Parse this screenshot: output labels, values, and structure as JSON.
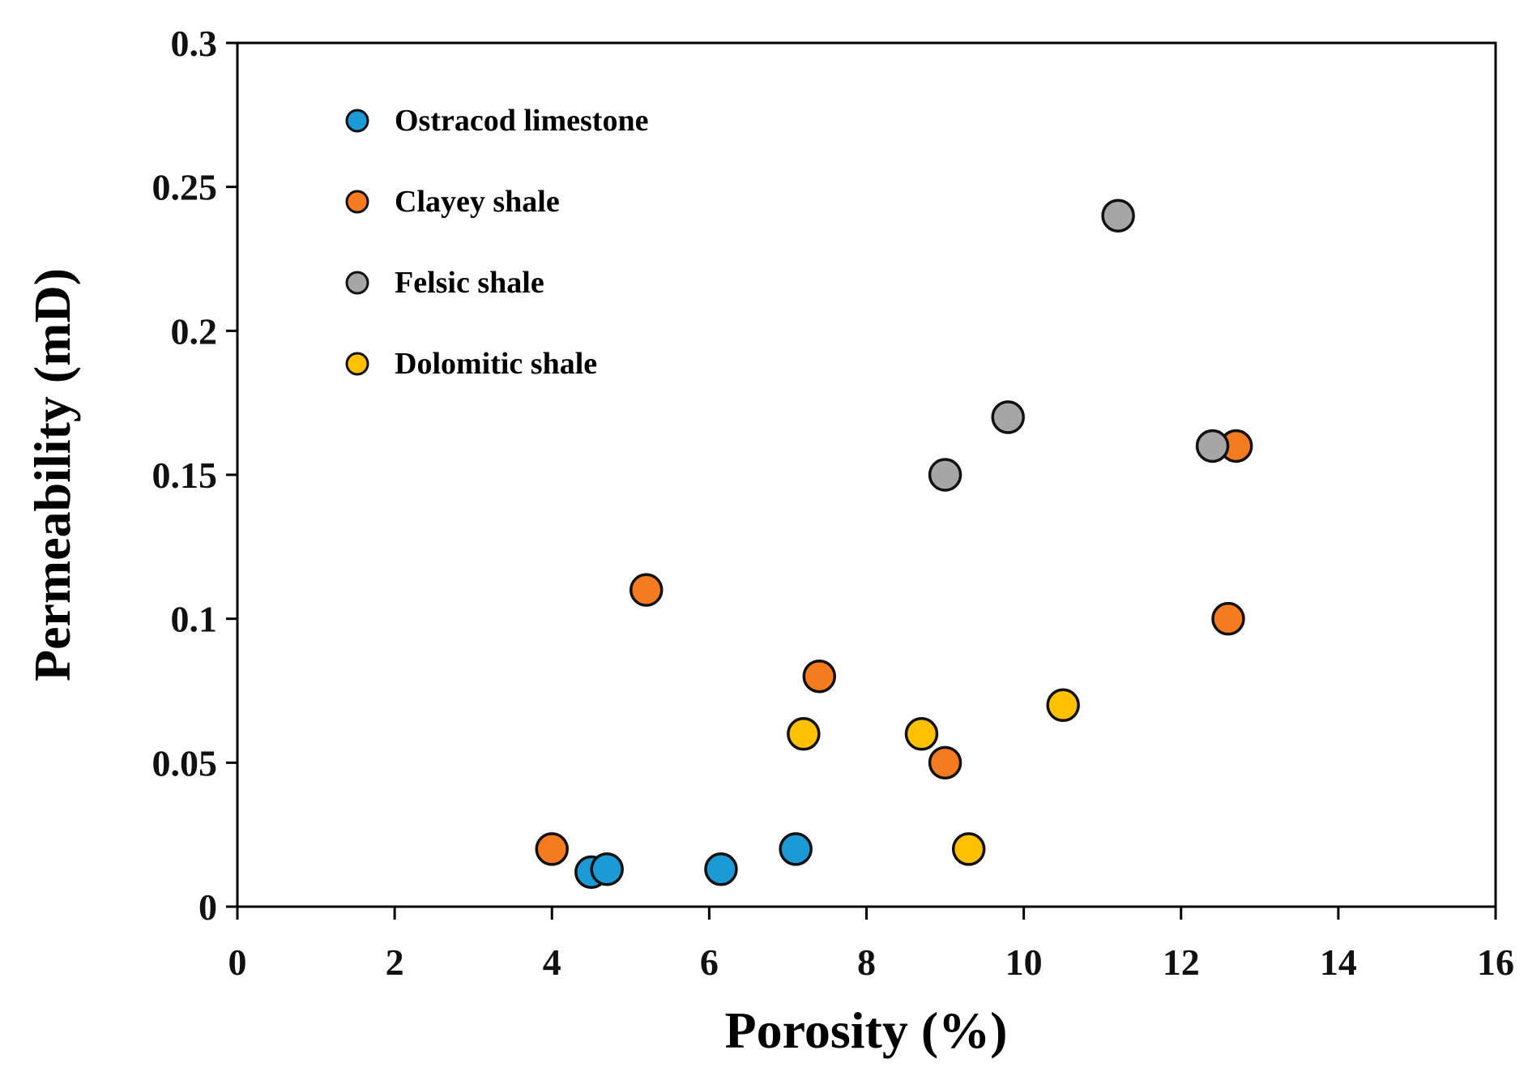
{
  "chart_data": {
    "type": "scatter",
    "title": "",
    "xlabel": "Porosity (%)",
    "ylabel": "Permeability (mD)",
    "xlim": [
      0,
      16
    ],
    "ylim": [
      0,
      0.3
    ],
    "xticks": [
      0,
      2,
      4,
      6,
      8,
      10,
      12,
      14,
      16
    ],
    "xtick_labels": [
      "0",
      "2",
      "4",
      "6",
      "8",
      "10",
      "12",
      "14",
      "16"
    ],
    "yticks": [
      0,
      0.05,
      0.1,
      0.15,
      0.2,
      0.25,
      0.3
    ],
    "ytick_labels": [
      "0",
      "0.05",
      "0.1",
      "0.15",
      "0.2",
      "0.25",
      "0.3"
    ],
    "grid": false,
    "legend_position": "top-left",
    "series": [
      {
        "name": "Ostracod limestone",
        "color": "#1b9ad6",
        "points": [
          {
            "x": 4.5,
            "y": 0.012
          },
          {
            "x": 4.7,
            "y": 0.013
          },
          {
            "x": 6.15,
            "y": 0.013
          },
          {
            "x": 7.1,
            "y": 0.02
          }
        ]
      },
      {
        "name": "Clayey shale",
        "color": "#f47b20",
        "points": [
          {
            "x": 4.0,
            "y": 0.02
          },
          {
            "x": 5.2,
            "y": 0.11
          },
          {
            "x": 7.4,
            "y": 0.08
          },
          {
            "x": 9.0,
            "y": 0.05
          },
          {
            "x": 12.6,
            "y": 0.1
          },
          {
            "x": 12.7,
            "y": 0.16
          }
        ]
      },
      {
        "name": "Felsic shale",
        "color": "#a6a6a6",
        "points": [
          {
            "x": 9.0,
            "y": 0.15
          },
          {
            "x": 9.8,
            "y": 0.17
          },
          {
            "x": 11.2,
            "y": 0.24
          },
          {
            "x": 12.4,
            "y": 0.16
          }
        ]
      },
      {
        "name": "Dolomitic shale",
        "color": "#ffc000",
        "points": [
          {
            "x": 7.2,
            "y": 0.06
          },
          {
            "x": 8.7,
            "y": 0.06
          },
          {
            "x": 9.3,
            "y": 0.02
          },
          {
            "x": 10.5,
            "y": 0.07
          }
        ]
      }
    ]
  }
}
